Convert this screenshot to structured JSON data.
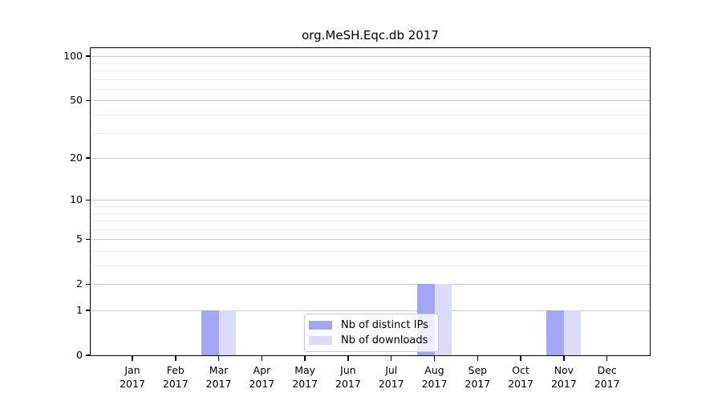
{
  "title": "org.MeSH.Eqc.db 2017",
  "chart_data": {
    "type": "bar",
    "title": "org.MeSH.Eqc.db 2017",
    "categories": [
      "Jan 2017",
      "Feb 2017",
      "Mar 2017",
      "Apr 2017",
      "May 2017",
      "Jun 2017",
      "Jul 2017",
      "Aug 2017",
      "Sep 2017",
      "Oct 2017",
      "Nov 2017",
      "Dec 2017"
    ],
    "series": [
      {
        "name": "Nb of distinct IPs",
        "color": "#a5a5f5",
        "values": [
          0,
          0,
          1,
          0,
          0,
          0,
          0,
          2,
          0,
          0,
          1,
          0
        ]
      },
      {
        "name": "Nb of downloads",
        "color": "#dbdbf8",
        "values": [
          0,
          0,
          1,
          0,
          0,
          0,
          0,
          2,
          0,
          0,
          1,
          0
        ]
      }
    ],
    "xlabel": "",
    "ylabel": "",
    "yscale": "log10(value+1)",
    "yticks": [
      0,
      1,
      2,
      5,
      10,
      20,
      50,
      100
    ],
    "minor_gridlines": [
      3,
      4,
      6,
      7,
      8,
      9,
      30,
      40,
      60,
      70,
      80,
      90
    ],
    "ylim": [
      0,
      115
    ],
    "grid": true,
    "legend_position": "inside-bottom-center",
    "colors": {
      "major_grid": "#c8c8c8",
      "minor_grid": "#ececec",
      "axis": "#000000",
      "background": "#ffffff"
    }
  }
}
